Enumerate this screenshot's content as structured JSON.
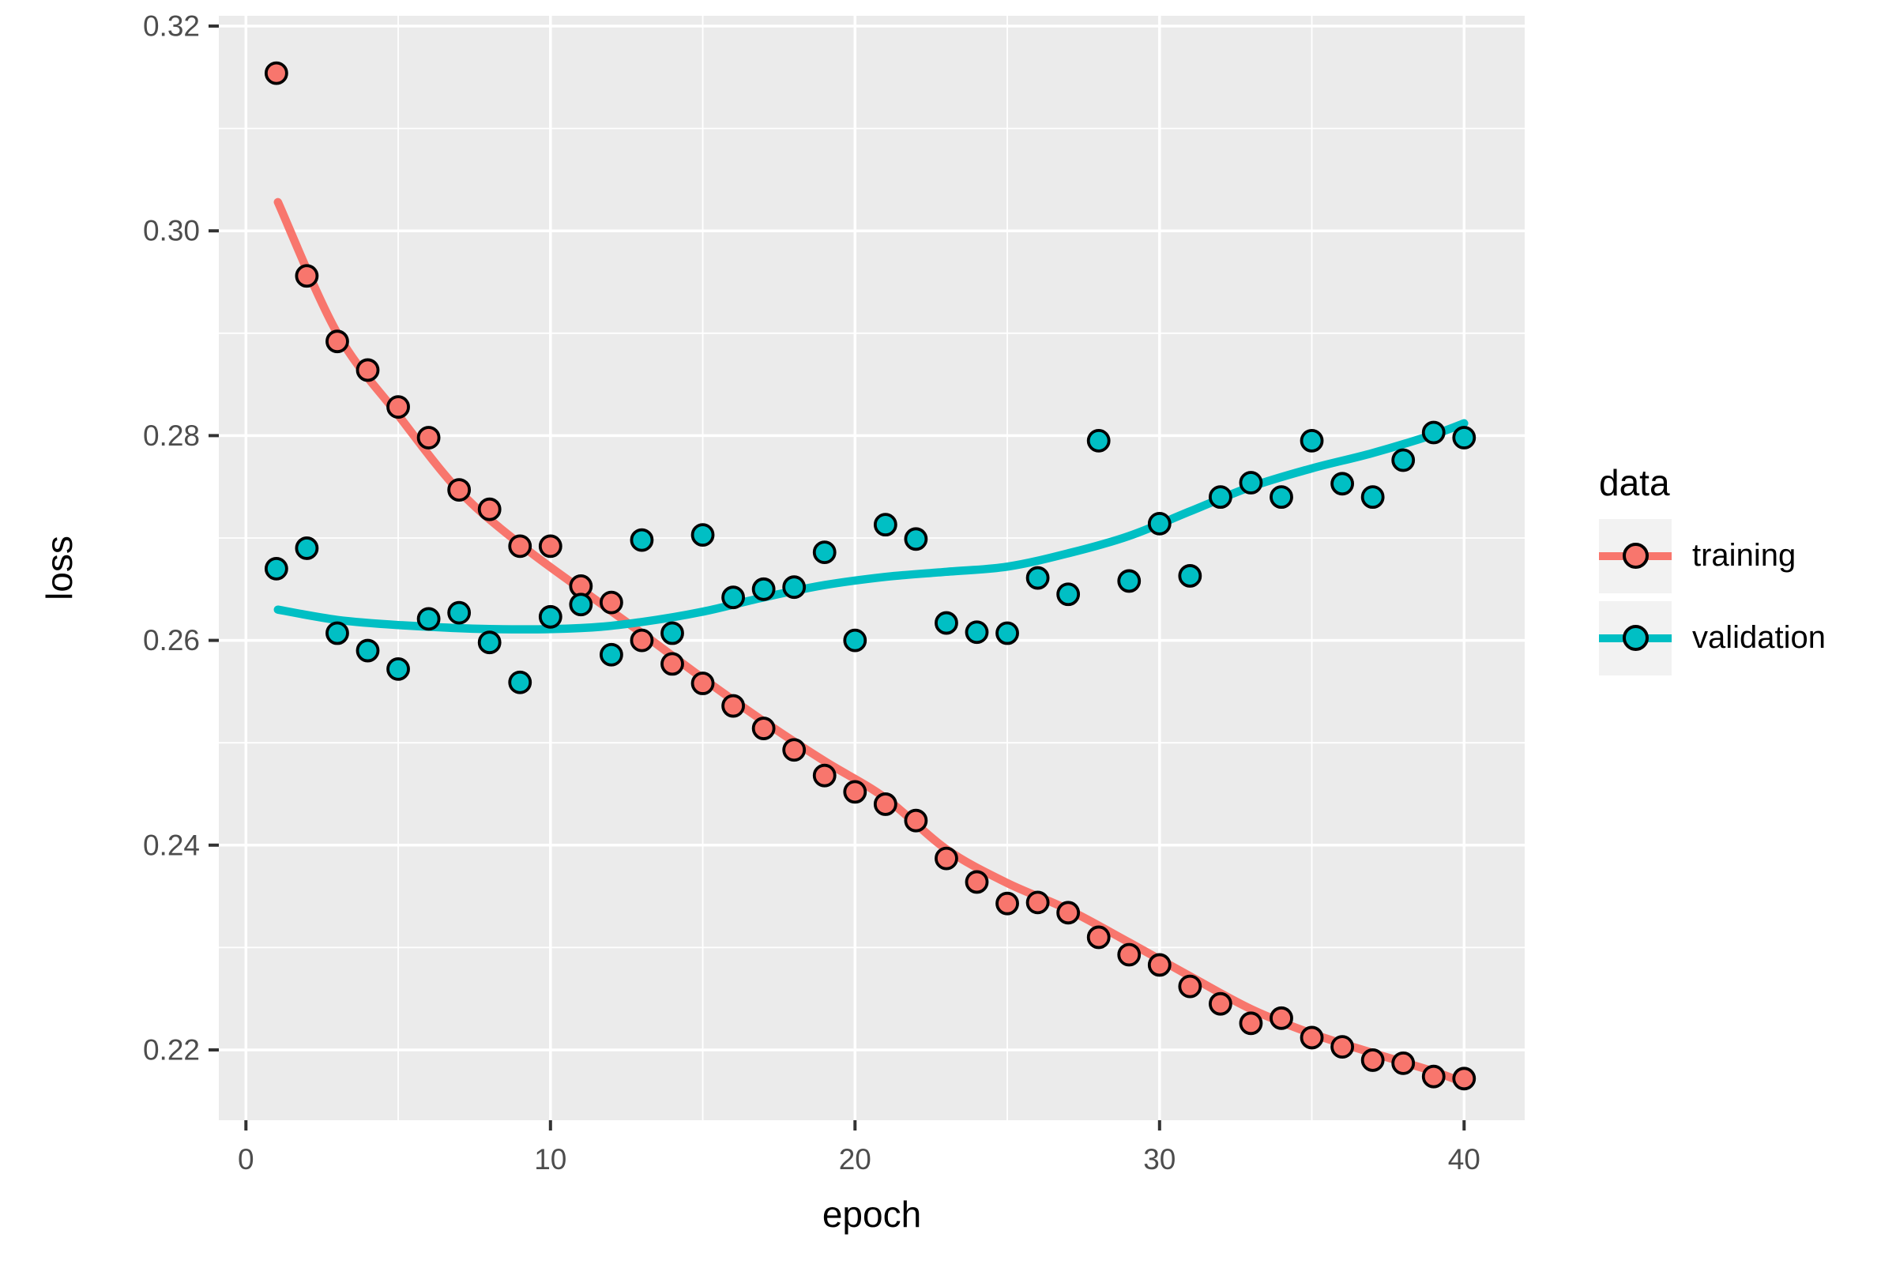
{
  "chart_data": {
    "type": "scatter",
    "title": "",
    "xlabel": "epoch",
    "ylabel": "loss",
    "x": [
      1,
      2,
      3,
      4,
      5,
      6,
      7,
      8,
      9,
      10,
      11,
      12,
      13,
      14,
      15,
      16,
      17,
      18,
      19,
      20,
      21,
      22,
      23,
      24,
      25,
      26,
      27,
      28,
      29,
      30,
      31,
      32,
      33,
      34,
      35,
      36,
      37,
      38,
      39,
      40
    ],
    "series": [
      {
        "name": "training",
        "color": "#F8766D",
        "points": [
          0.3154,
          0.2956,
          0.2892,
          0.2864,
          0.2828,
          0.2798,
          0.2747,
          0.2728,
          0.2692,
          0.2692,
          0.2653,
          0.2637,
          0.26,
          0.2577,
          0.2558,
          0.2536,
          0.2514,
          0.2493,
          0.2468,
          0.2452,
          0.244,
          0.2424,
          0.2387,
          0.2364,
          0.2343,
          0.2344,
          0.2334,
          0.231,
          0.2293,
          0.2283,
          0.2262,
          0.2245,
          0.2226,
          0.2231,
          0.2212,
          0.2203,
          0.219,
          0.2187,
          0.2174,
          0.2172
        ],
        "smooth": [
          [
            1.05,
            0.3028
          ],
          [
            3,
            0.29
          ],
          [
            5,
            0.282
          ],
          [
            7,
            0.2746
          ],
          [
            9,
            0.2694
          ],
          [
            11,
            0.265
          ],
          [
            13,
            0.2607
          ],
          [
            15,
            0.2563
          ],
          [
            17,
            0.2521
          ],
          [
            19,
            0.2482
          ],
          [
            21,
            0.2446
          ],
          [
            23,
            0.2396
          ],
          [
            25,
            0.2363
          ],
          [
            27,
            0.2337
          ],
          [
            29,
            0.2305
          ],
          [
            31,
            0.2272
          ],
          [
            33,
            0.224
          ],
          [
            35,
            0.2216
          ],
          [
            37,
            0.2197
          ],
          [
            39,
            0.2179
          ],
          [
            40,
            0.2168
          ]
        ]
      },
      {
        "name": "validation",
        "color": "#00BFC4",
        "points": [
          0.267,
          0.269,
          0.2607,
          0.259,
          0.2572,
          0.2621,
          0.2627,
          0.2598,
          0.2559,
          0.2623,
          0.2635,
          0.2586,
          0.2698,
          0.2607,
          0.2703,
          0.2642,
          0.265,
          0.2652,
          0.2686,
          0.26,
          0.2713,
          0.2699,
          0.2617,
          0.2608,
          0.2607,
          0.2661,
          0.2645,
          0.2795,
          0.2658,
          0.2714,
          0.2663,
          0.274,
          0.2754,
          0.274,
          0.2795,
          0.2753,
          0.274,
          0.2776,
          0.2803,
          0.2798
        ],
        "smooth": [
          [
            1.05,
            0.263
          ],
          [
            3,
            0.262
          ],
          [
            5,
            0.2615
          ],
          [
            8,
            0.2611
          ],
          [
            11,
            0.2612
          ],
          [
            13,
            0.2618
          ],
          [
            15,
            0.2628
          ],
          [
            17,
            0.2642
          ],
          [
            19,
            0.2654
          ],
          [
            21,
            0.2662
          ],
          [
            23,
            0.2667
          ],
          [
            25,
            0.2672
          ],
          [
            27,
            0.2685
          ],
          [
            29,
            0.2702
          ],
          [
            31,
            0.2726
          ],
          [
            33,
            0.275
          ],
          [
            35,
            0.2768
          ],
          [
            37,
            0.2783
          ],
          [
            39,
            0.2801
          ],
          [
            40,
            0.2812
          ]
        ]
      }
    ],
    "x_ticks": [
      0,
      10,
      20,
      30,
      40
    ],
    "x_tick_labels": [
      "0",
      "10",
      "20",
      "30",
      "40"
    ],
    "x_minor_ticks": [
      5,
      15,
      25,
      35
    ],
    "y_ticks": [
      0.32,
      0.3,
      0.28,
      0.26,
      0.24,
      0.22
    ],
    "y_tick_labels": [
      "0.32",
      "0.30",
      "0.28",
      "0.26",
      "0.24",
      "0.22"
    ],
    "y_minor_ticks": [
      0.31,
      0.29,
      0.27,
      0.25,
      0.23
    ],
    "xlim": [
      -0.9,
      42.0
    ],
    "ylim": [
      0.2132,
      0.321
    ],
    "grid": true,
    "legend_position": "right",
    "legend": {
      "title": "data",
      "entries": [
        {
          "label": "training",
          "color": "#F8766D"
        },
        {
          "label": "validation",
          "color": "#00BFC4"
        }
      ]
    },
    "style": {
      "panel_bg": "#EBEBEB",
      "grid_color": "#FFFFFF",
      "axis_text_color": "#4D4D4D",
      "axis_title_color": "#000000",
      "tick_color": "#333333",
      "legend_key_bg": "#F2F2F2",
      "point_stroke": "#000000"
    }
  }
}
